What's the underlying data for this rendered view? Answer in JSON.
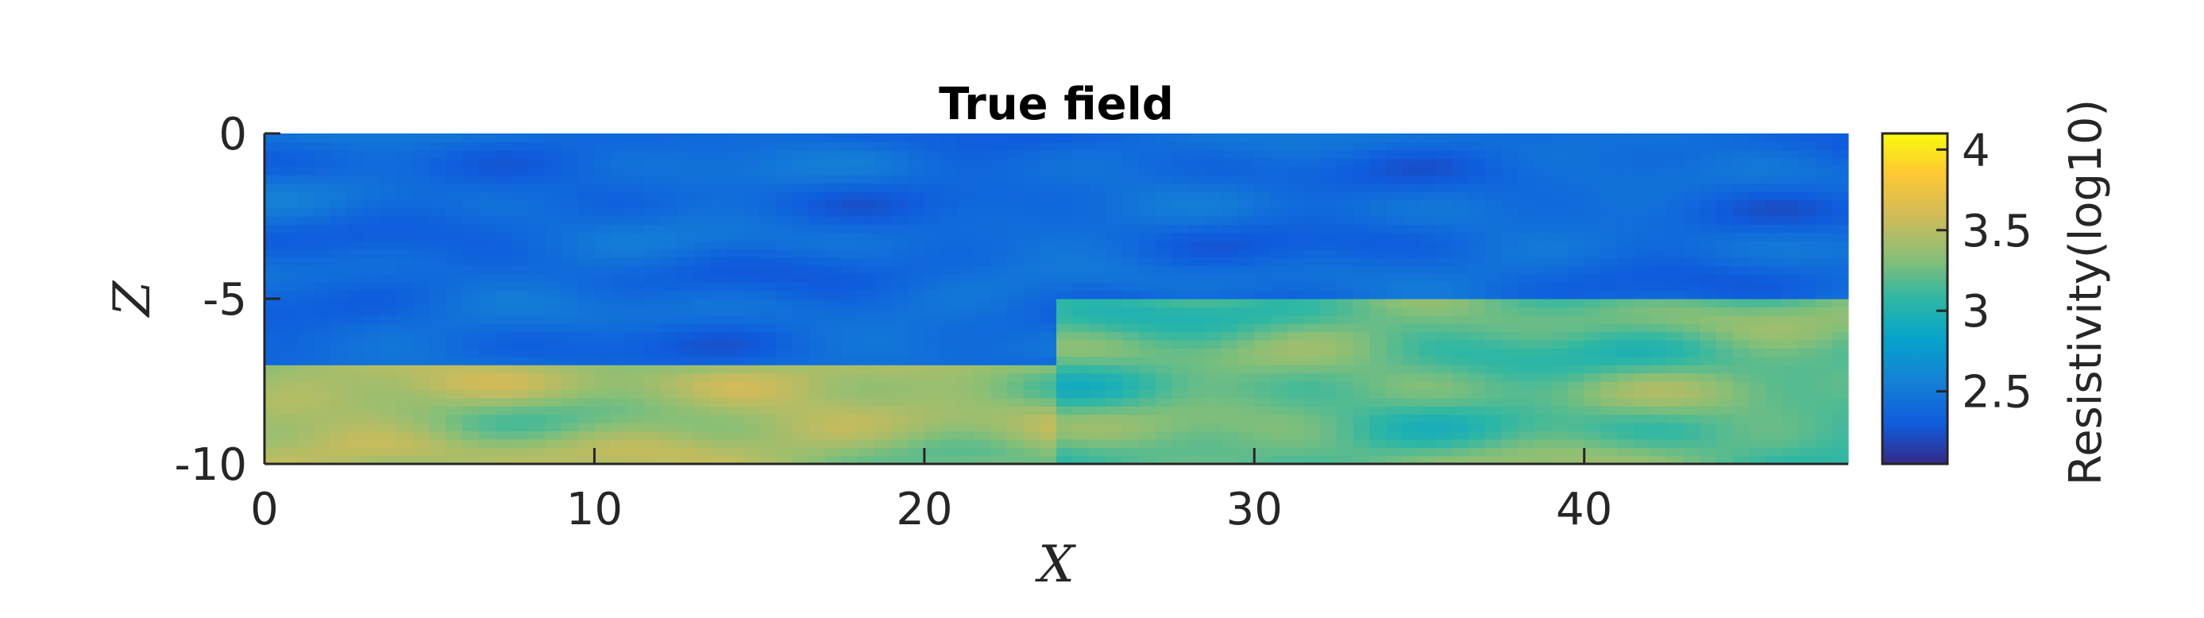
{
  "chart_data": {
    "type": "heatmap",
    "title": "True field",
    "xlabel": "X",
    "ylabel": "Z",
    "xlim": [
      0,
      48
    ],
    "ylim": [
      -10,
      0
    ],
    "x_ticks": [
      0,
      10,
      20,
      30,
      40
    ],
    "x_tick_labels": [
      "0",
      "10",
      "20",
      "30",
      "40"
    ],
    "y_ticks": [
      0,
      -5,
      -10
    ],
    "y_tick_labels": [
      "0",
      "-5",
      "-10"
    ],
    "colorbar": {
      "label": "Resistivity(log10)",
      "range": [
        2.05,
        4.1
      ],
      "ticks": [
        2.5,
        3,
        3.5,
        4
      ],
      "tick_labels": [
        "2.5",
        "3",
        "3.5",
        "4"
      ],
      "colormap": "parula"
    },
    "layers": [
      {
        "region": "upper",
        "x_range": [
          0,
          24
        ],
        "z_range": [
          -7,
          0
        ],
        "mean_value": 2.4
      },
      {
        "region": "upper",
        "x_range": [
          24,
          48
        ],
        "z_range": [
          -5,
          0
        ],
        "mean_value": 2.4
      },
      {
        "region": "lower",
        "x_range": [
          0,
          24
        ],
        "z_range": [
          -10,
          -7
        ],
        "mean_value": 3.4
      },
      {
        "region": "lower",
        "x_range": [
          24,
          48
        ],
        "z_range": [
          -10,
          -5
        ],
        "mean_value": 3.2
      }
    ],
    "grid": false
  },
  "colors": {
    "parula_low": "#352a87",
    "parula_mid": "#1fb6b2",
    "parula_high": "#f9fb0e",
    "axis": "#262626"
  }
}
